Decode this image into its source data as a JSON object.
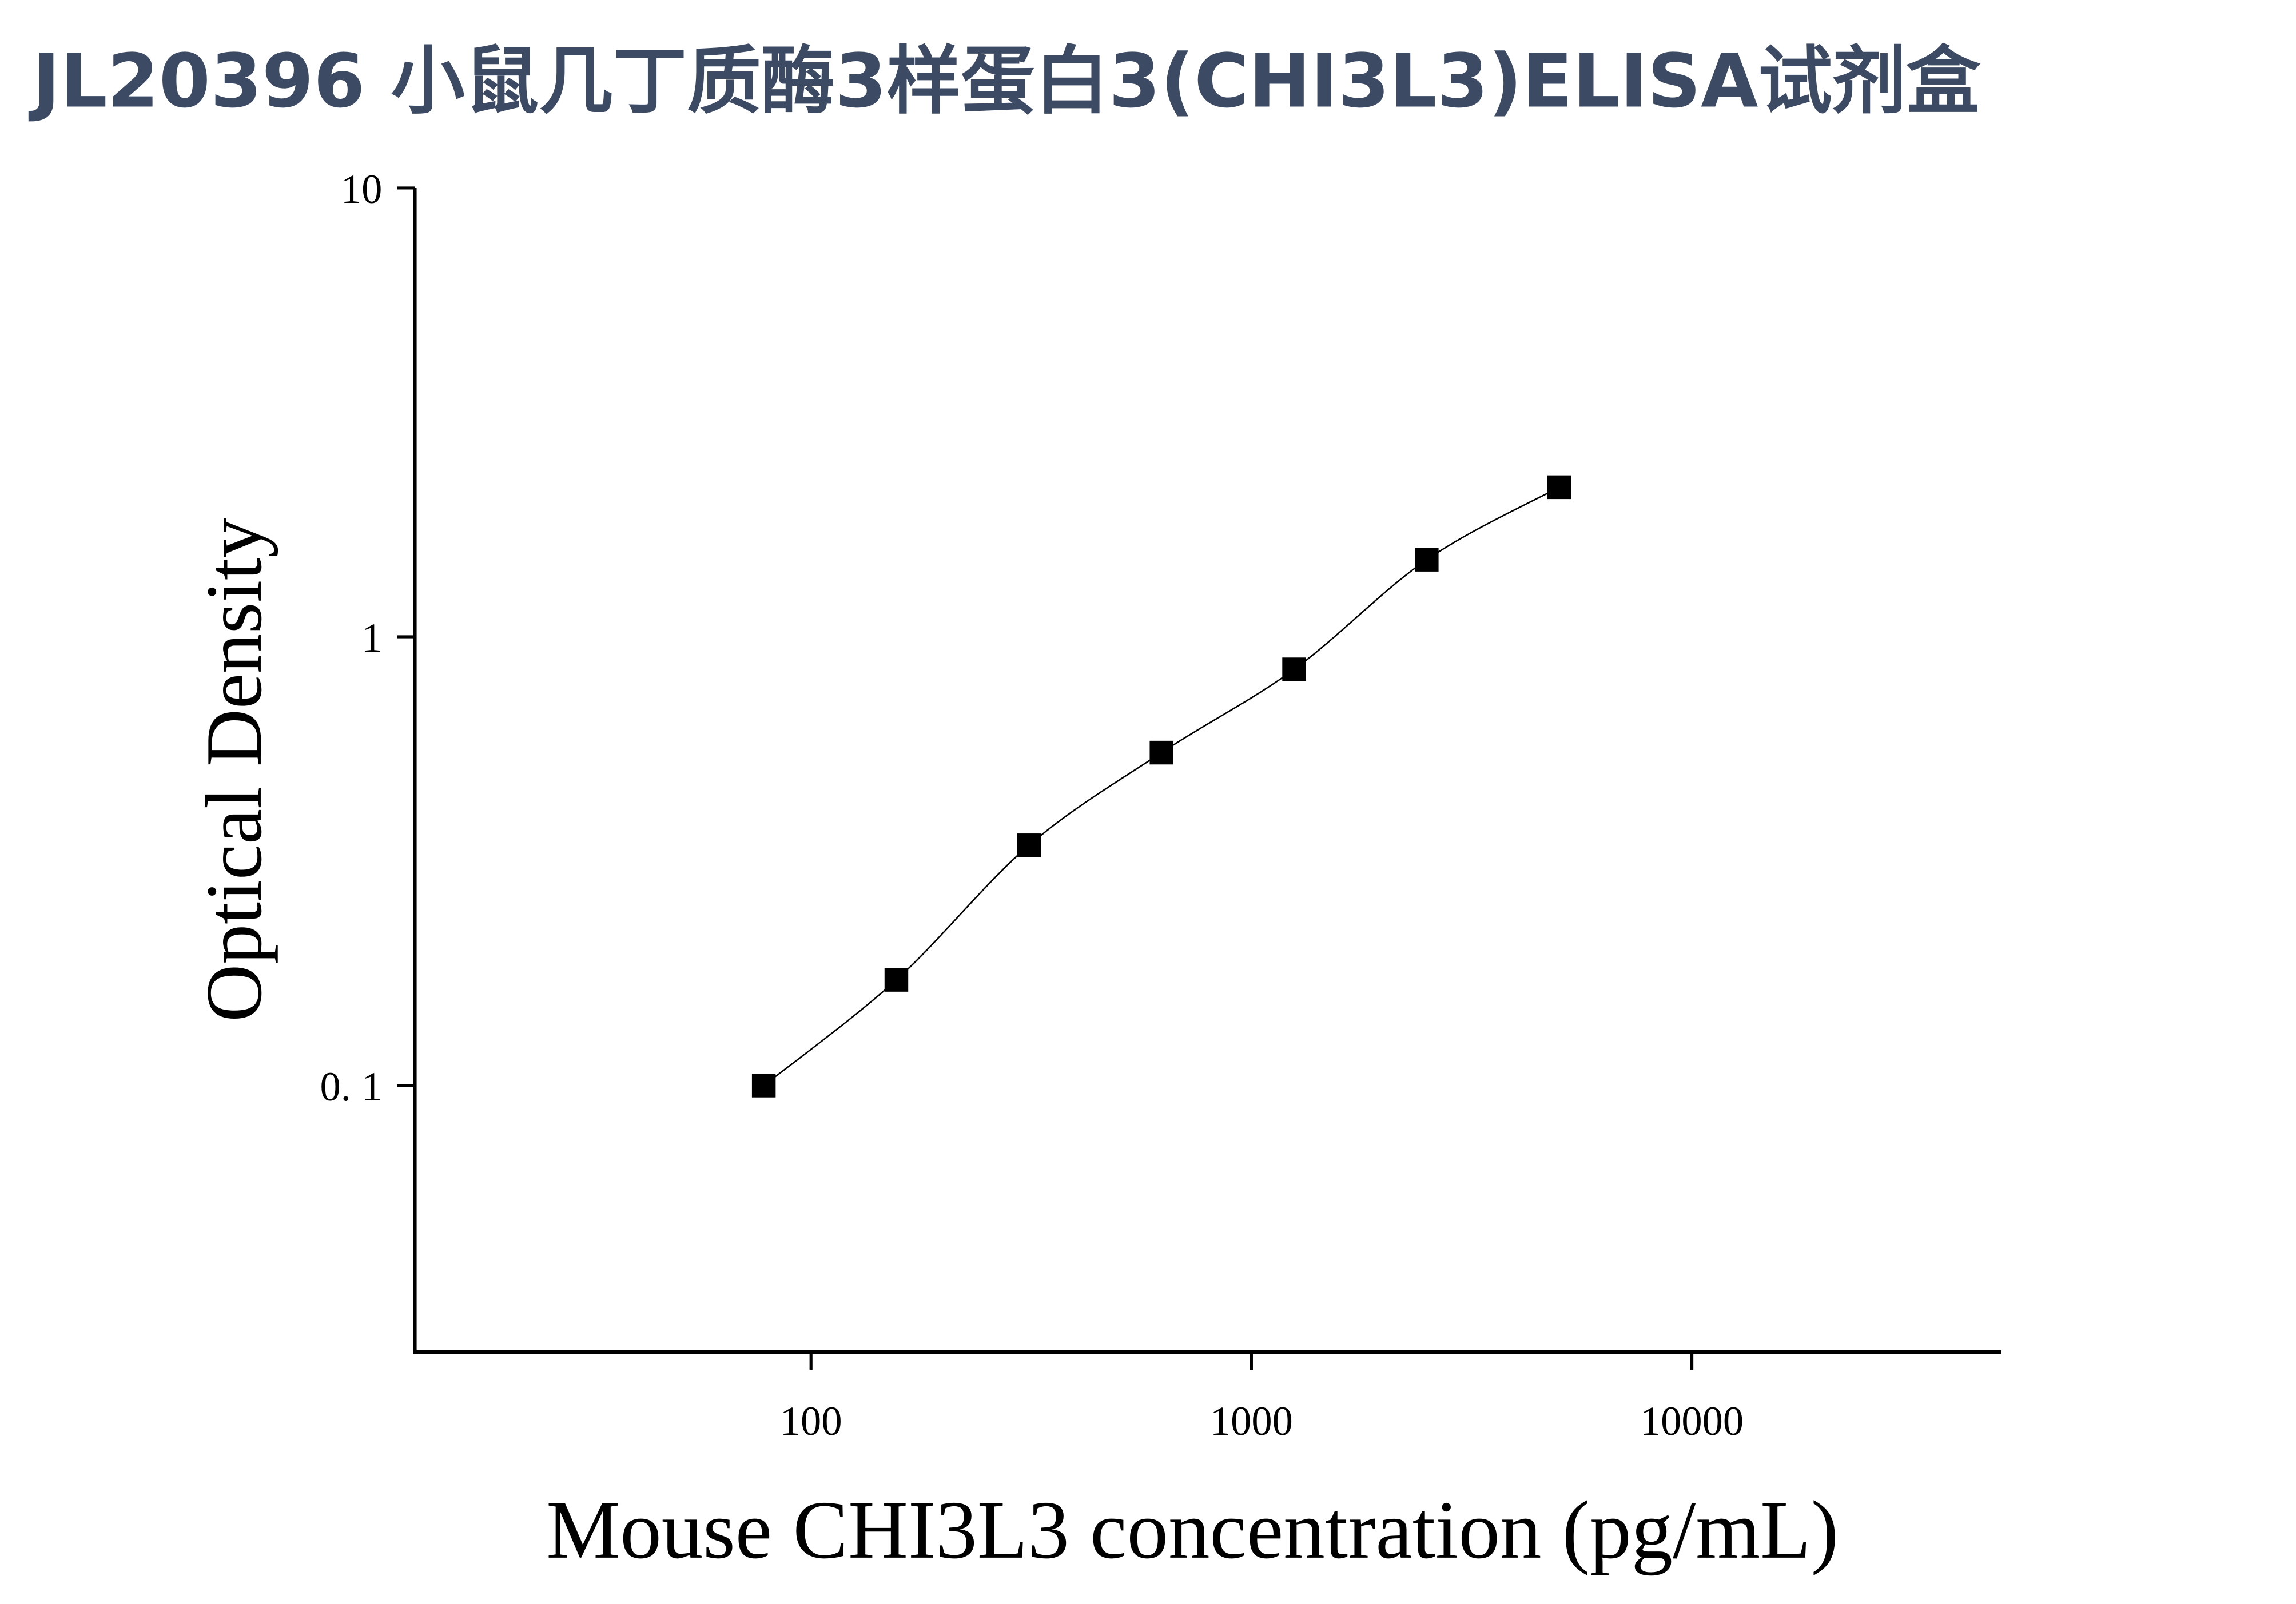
{
  "chart_data": {
    "type": "scatter",
    "title": "JL20396 小鼠几丁质酶3样蛋白3(CHI3L3)ELISA试剂盒",
    "xlabel": "Mouse CHI3L3 concentration (pg/mL)",
    "ylabel": "Optical Density",
    "xscale": "log",
    "yscale": "log",
    "xlim": [
      12.6,
      50000
    ],
    "ylim": [
      0.0255,
      10
    ],
    "xticks": [
      100,
      1000,
      10000
    ],
    "yticks": [
      {
        "value": 0.1,
        "label": "0. 1"
      },
      1,
      10
    ],
    "series": [
      {
        "color": "#000000",
        "line": true,
        "x": [
          78.125,
          156.25,
          312.5,
          625,
          1250,
          2500,
          5000
        ],
        "values": [
          0.1,
          0.172,
          0.343,
          0.552,
          0.846,
          1.485,
          2.154
        ]
      }
    ]
  }
}
